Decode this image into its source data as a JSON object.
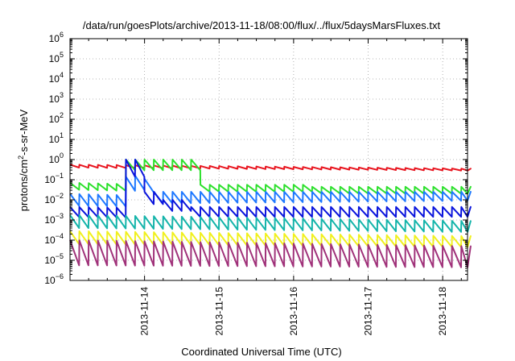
{
  "chart_data": {
    "type": "line",
    "title": "/data/run/goesPlots/archive/2013-11-18/08:00/flux/../flux/5daysMarsFluxes.txt",
    "xlabel": "Coordinated Universal Time (UTC)",
    "ylabel_parts": [
      "protons/cm",
      "2",
      "-s-sr-MeV"
    ],
    "yscale": "log",
    "ylim": [
      -6,
      6
    ],
    "ytick_base": "10",
    "yticks": [
      -6,
      -5,
      -4,
      -3,
      -2,
      -1,
      0,
      1,
      2,
      3,
      4,
      5,
      6
    ],
    "xlim": [
      "2013-11-13T00:00",
      "2013-11-18T08:00"
    ],
    "xticks": [
      "2013-11-14",
      "2013-11-15",
      "2013-11-16",
      "2013-11-17",
      "2013-11-18"
    ],
    "grid": true,
    "legend": "none",
    "sawtooth_period_hours": 3,
    "series": [
      {
        "color": "#e8141e",
        "low": [
          -0.4,
          -0.55
        ],
        "high": [
          -0.25,
          -0.45
        ],
        "steps": [
          [
            -0.33,
            -0.14
          ],
          [
            2.3,
            -0.3
          ],
          [
            3.2,
            -0.2
          ],
          [
            4.1,
            -0.45
          ]
        ]
      },
      {
        "color": "#2de02d",
        "low": [
          -1.5,
          -1.95
        ],
        "high": [
          -1.15,
          -1.65
        ],
        "steps": [
          [
            1.0,
            -1.25
          ],
          [
            2.5,
            -1.35
          ]
        ]
      },
      {
        "color": "#1e78ff",
        "low": [
          -2.3,
          -2.55
        ],
        "high": [
          -1.7,
          -2.2
        ],
        "steps": [
          [
            -0.3,
            -1.0
          ],
          [
            0.0,
            -0.85
          ],
          [
            0.15,
            -0.8
          ],
          [
            0.25,
            -0.95
          ],
          [
            0.4,
            -1.6
          ]
        ]
      },
      {
        "color": "#0a14dc",
        "low": [
          -2.85,
          -3.1
        ],
        "high": [
          -2.35,
          -2.65
        ],
        "steps": [
          [
            -0.3,
            -0.85
          ],
          [
            -0.05,
            -1.2
          ],
          [
            0.2,
            -1.6
          ],
          [
            0.5,
            -2.0
          ],
          [
            0.85,
            -2.35
          ]
        ]
      },
      {
        "color": "#14b4aa",
        "low": [
          -3.4,
          -3.6
        ],
        "high": [
          -2.75,
          -3.05
        ],
        "steps": []
      },
      {
        "color": "#f0f01e",
        "low": [
          -4.2,
          -4.35
        ],
        "high": [
          -3.55,
          -3.8
        ],
        "steps": []
      },
      {
        "color": "#a0327a",
        "low": [
          -5.25,
          -5.35
        ],
        "high": [
          -4.0,
          -4.3
        ],
        "steps": []
      }
    ]
  }
}
